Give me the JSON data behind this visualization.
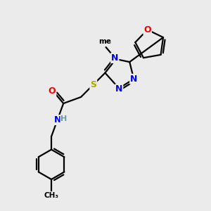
{
  "bg_color": "#ebebeb",
  "atom_colors": {
    "C": "#000000",
    "N": "#0000ee",
    "O": "#ee0000",
    "S": "#aaaa00",
    "H": "#6699aa"
  },
  "line_color": "#000000",
  "line_width": 1.6,
  "fig_size": [
    3.0,
    3.0
  ],
  "dpi": 100
}
